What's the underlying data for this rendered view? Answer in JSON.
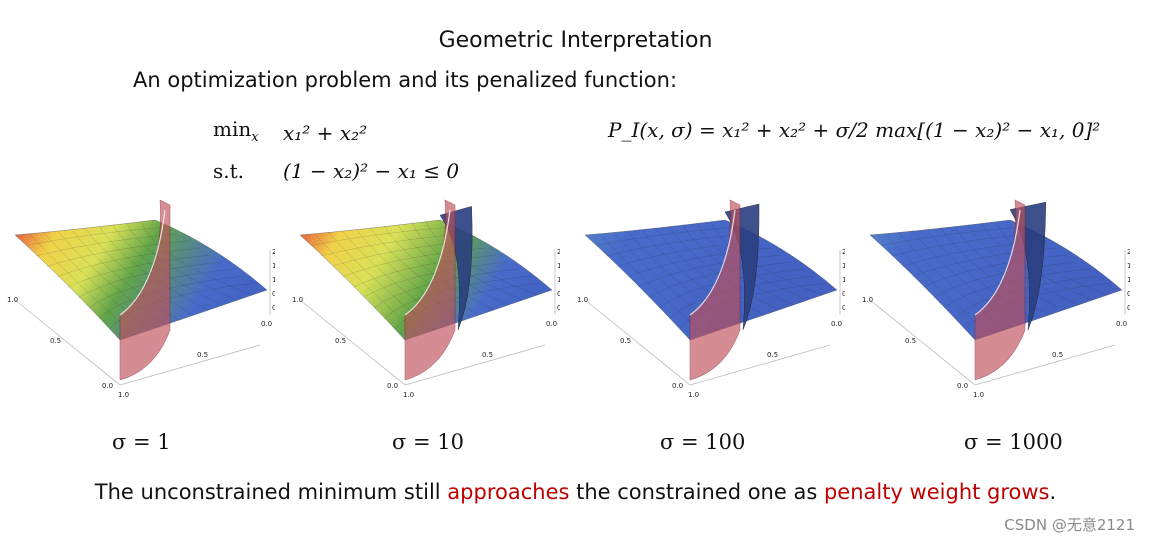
{
  "title": "Geometric Interpretation",
  "intro": "An optimization problem and its penalized function:",
  "problem": {
    "min_label": "min",
    "min_sub": "x",
    "objective": "x₁² + x₂²",
    "st_label": "s.t.",
    "constraint": "(1 − x₂)² − x₁ ≤ 0"
  },
  "penalized_function": {
    "lhs": "P_I(x, σ)",
    "expression": "P_I(x, σ) = x₁² + x₂² + σ/2 max[(1 − x₂)² − x₁, 0]²"
  },
  "plots": [
    {
      "sigma_label": "σ = 1"
    },
    {
      "sigma_label": "σ = 10"
    },
    {
      "sigma_label": "σ = 100"
    },
    {
      "sigma_label": "σ = 1000"
    }
  ],
  "axis_ticks": {
    "z": [
      "2.0",
      "1.5",
      "1.0",
      "0.5",
      "0.0"
    ],
    "x1": [
      "1.0",
      "0.5",
      "0.0"
    ],
    "x2": [
      "1.0",
      "0.5",
      "0.0"
    ]
  },
  "caption": {
    "part1": "The unconstrained minimum still ",
    "highlight1": "approaches",
    "part2": " the constrained one as ",
    "highlight2": "penalty weight grows",
    "part3": "."
  },
  "colors": {
    "highlight": "#c00000",
    "surface_blue": "#3f64c8",
    "constraint_red": "#c0505a"
  },
  "watermark": "CSDN @无意2121"
}
